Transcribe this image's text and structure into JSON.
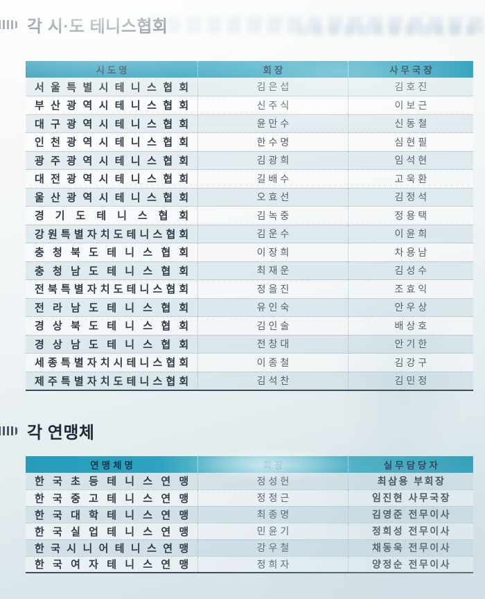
{
  "colors": {
    "header_teal": "#2a9fbc",
    "header_text_navy": "#17384e",
    "body_text": "#55626c",
    "name_text": "#303c47",
    "table_bottom_line": "#3b4d58"
  },
  "icons": {
    "section_bullet": "striped-arrow-bullet"
  },
  "section1": {
    "title": "각 시·도 테니스협회",
    "headers": [
      "시도명",
      "회장",
      "사무국장"
    ],
    "rows": [
      {
        "name": "서울특별시테니스협회",
        "president": "김은섭",
        "secretary": "김호진"
      },
      {
        "name": "부산광역시테니스협회",
        "president": "신주식",
        "secretary": "이보근"
      },
      {
        "name": "대구광역시테니스협회",
        "president": "윤만수",
        "secretary": "신동철"
      },
      {
        "name": "인천광역시테니스협회",
        "president": "한수명",
        "secretary": "심현필"
      },
      {
        "name": "광주광역시테니스협회",
        "president": "김광희",
        "secretary": "임석현"
      },
      {
        "name": "대전광역시테니스협회",
        "president": "길배수",
        "secretary": "고욱환"
      },
      {
        "name": "울산광역시테니스협회",
        "president": "오효선",
        "secretary": "김정석"
      },
      {
        "name": "경기도테니스협회",
        "president": "김녹중",
        "secretary": "정용택"
      },
      {
        "name": "강원특별자치도테니스협회",
        "president": "김운수",
        "secretary": "이윤희"
      },
      {
        "name": "충청북도테니스협회",
        "president": "이장희",
        "secretary": "차용남"
      },
      {
        "name": "충청남도테니스협회",
        "president": "최재운",
        "secretary": "김성수"
      },
      {
        "name": "전북특별자치도테니스협회",
        "president": "정을진",
        "secretary": "조효익"
      },
      {
        "name": "전라남도테니스협회",
        "president": "유인숙",
        "secretary": "안우상"
      },
      {
        "name": "경상북도테니스협회",
        "president": "김인술",
        "secretary": "배상호"
      },
      {
        "name": "경상남도테니스협회",
        "president": "전창대",
        "secretary": "안기한"
      },
      {
        "name": "세종특별자치시테니스협회",
        "president": "이종철",
        "secretary": "김강구"
      },
      {
        "name": "제주특별자치도테니스협회",
        "president": "김석찬",
        "secretary": "김민정"
      }
    ]
  },
  "section2": {
    "title": "각 연맹체",
    "headers": [
      "연맹체명",
      "회장",
      "실무담당자"
    ],
    "rows": [
      {
        "name": "한국초등테니스연맹",
        "president": "정성헌",
        "manager": "최삼용 부회장"
      },
      {
        "name": "한국중고테니스연맹",
        "president": "정정근",
        "manager": "임진현 사무국장"
      },
      {
        "name": "한국대학테니스연맹",
        "president": "최종명",
        "manager": "김영준 전무이사"
      },
      {
        "name": "한국실업테니스연맹",
        "president": "민윤기",
        "manager": "정희성 전무이사"
      },
      {
        "name": "한국시니어테니스연맹",
        "president": "강우철",
        "manager": "채동욱 전무이사"
      },
      {
        "name": "한국여자테니스연맹",
        "president": "정희자",
        "manager": "양정순 전무이사"
      }
    ]
  }
}
